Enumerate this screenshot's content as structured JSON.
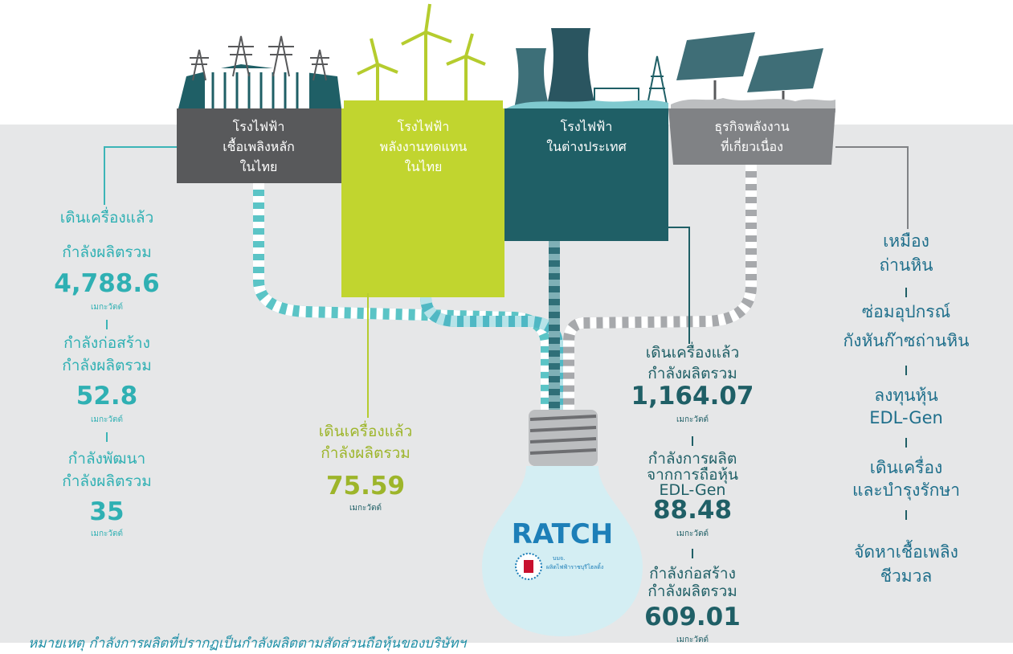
{
  "plants": [
    {
      "lines": [
        "โรงไฟฟ้า",
        "เชื้อเพลิงหลัก",
        "ในไทย"
      ]
    },
    {
      "lines": [
        "โรงไฟฟ้า",
        "พลังงานทดแทน",
        "ในไทย"
      ]
    },
    {
      "lines": [
        "โรงไฟฟ้า",
        "ในต่างประเทศ"
      ]
    },
    {
      "lines": [
        "ธุรกิจพลังงาน",
        "ที่เกี่ยวเนื่อง"
      ]
    }
  ],
  "thai_main": [
    {
      "label": [
        "เดินเครื่องแล้ว",
        "กำลังผลิตรวม"
      ],
      "value": "4,788.6",
      "unit": "เมกะวัตต์"
    },
    {
      "label": [
        "กำลังก่อสร้าง",
        "กำลังผลิตรวม"
      ],
      "value": "52.8",
      "unit": "เมกะวัตต์"
    },
    {
      "label": [
        "กำลังพัฒนา",
        "กำลังผลิตรวม"
      ],
      "value": "35",
      "unit": "เมกะวัตต์"
    }
  ],
  "thai_renewable": [
    {
      "label": [
        "เดินเครื่องแล้ว",
        "กำลังผลิตรวม"
      ],
      "value": "75.59",
      "unit": "เมกะวัตต์"
    }
  ],
  "overseas": [
    {
      "label": [
        "เดินเครื่องแล้ว",
        "กำลังผลิตรวม"
      ],
      "value": "1,164.07",
      "unit": "เมกะวัตต์"
    },
    {
      "label": [
        "กำลังการผลิต",
        "จากการถือหุ้น",
        "EDL-Gen"
      ],
      "value": "88.48",
      "unit": "เมกะวัตต์"
    },
    {
      "label": [
        "กำลังก่อสร้าง",
        "กำลังผลิตรวม"
      ],
      "value": "609.01",
      "unit": "เมกะวัตต์"
    }
  ],
  "related_business": [
    {
      "lines": [
        "เหมือง",
        "ถ่านหิน"
      ]
    },
    {
      "lines": [
        "ซ่อมอุปกรณ์",
        "กังหันก๊าซถ่านหิน"
      ]
    },
    {
      "lines": [
        "ลงทุนหุ้น",
        "EDL-Gen"
      ]
    },
    {
      "lines": [
        "เดินเครื่อง",
        "และบำรุงรักษา"
      ]
    },
    {
      "lines": [
        "จัดหาเชื้อเพลิง",
        "ชีวมวล"
      ]
    }
  ],
  "logo": {
    "name": "RATCH",
    "prefix": "บมจ.",
    "company": "ผลิตไฟฟ้าราชบุรีโฮลดิ้ง"
  },
  "note": "หมายเหตุ  กำลังการผลิตที่ปรากฏเป็นกำลังผลิตตามสัดส่วนถือหุ้นของบริษัทฯ"
}
